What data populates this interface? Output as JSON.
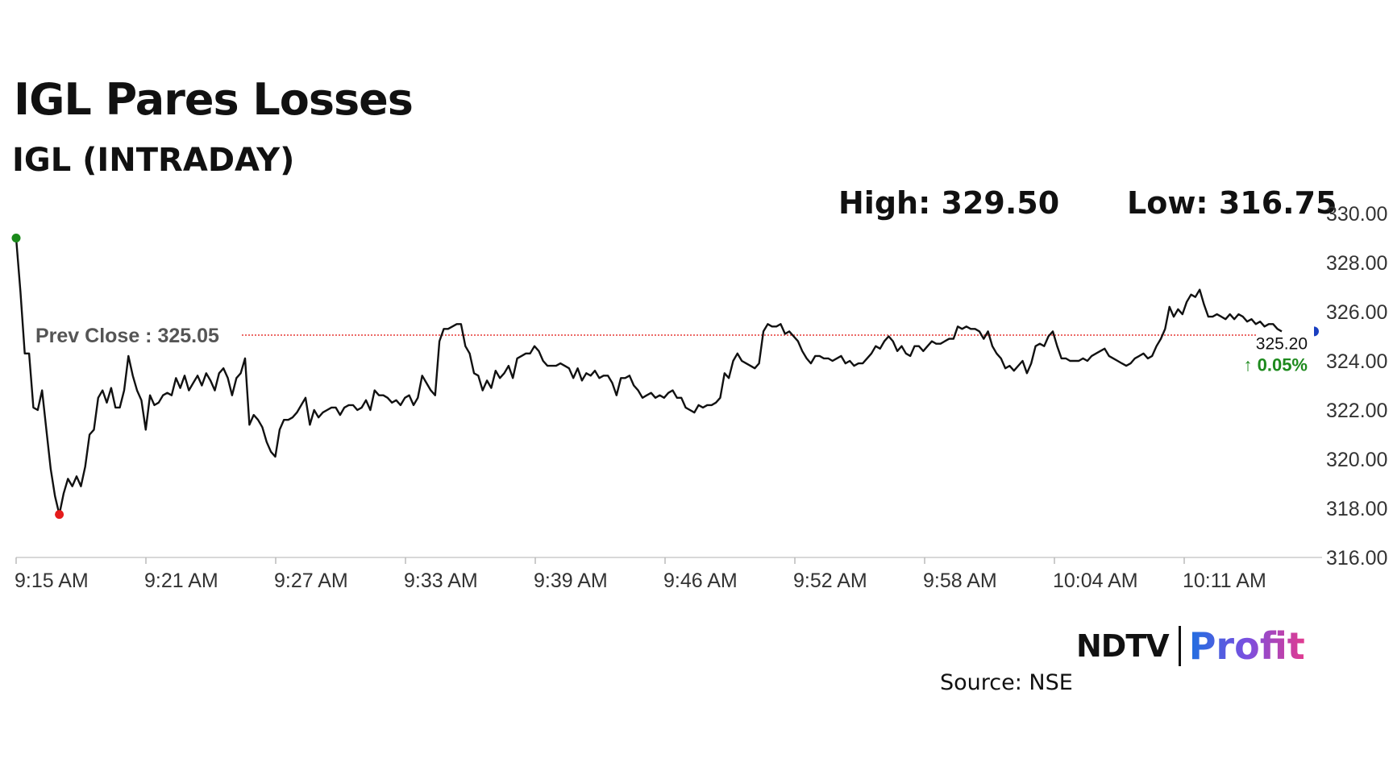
{
  "header": {
    "title": "IGL Pares Losses",
    "subtitle": "IGL (INTRADAY)",
    "high_text": "High: 329.50",
    "low_text": "Low: 316.75"
  },
  "footer": {
    "source": "Source: NSE",
    "logo_ndtv": "NDTV",
    "logo_profit": "Profit"
  },
  "chart_data": {
    "type": "line",
    "title": "IGL (INTRADAY)",
    "y_axis": {
      "min": 316,
      "max": 330,
      "ticks": [
        "316.00",
        "318.00",
        "320.00",
        "322.00",
        "324.00",
        "326.00",
        "328.00",
        "330.00"
      ],
      "side": "right"
    },
    "x_axis": {
      "ticks": [
        "9:15 AM",
        "9:21 AM",
        "9:27 AM",
        "9:33 AM",
        "9:39 AM",
        "9:46 AM",
        "9:52 AM",
        "9:58 AM",
        "10:04 AM",
        "10:11 AM"
      ]
    },
    "prev_close": {
      "label": "Prev Close : 325.05",
      "value": 325.05,
      "color": "#e53935"
    },
    "last": {
      "value_label": "325.20",
      "change_label": "↑ 0.05%",
      "change_color": "#1e8a1e"
    },
    "markers": {
      "start": {
        "index": 0,
        "value": 329.0,
        "color": "#1a8a1a"
      },
      "low": {
        "index": 10,
        "value": 317.75,
        "color": "#e51c1c"
      },
      "end_color": "#1a3fc0"
    },
    "line_color": "#111111",
    "grid": false,
    "values": [
      329.0,
      326.8,
      324.3,
      324.3,
      322.1,
      322.0,
      322.8,
      321.2,
      319.6,
      318.5,
      317.75,
      318.6,
      319.2,
      318.9,
      319.3,
      318.9,
      319.7,
      321.0,
      321.2,
      322.5,
      322.8,
      322.3,
      322.9,
      322.1,
      322.1,
      322.8,
      324.2,
      323.4,
      322.8,
      322.4,
      321.2,
      322.6,
      322.2,
      322.3,
      322.6,
      322.7,
      322.6,
      323.3,
      322.9,
      323.4,
      322.8,
      323.1,
      323.4,
      323.0,
      323.5,
      323.2,
      322.8,
      323.5,
      323.7,
      323.3,
      322.6,
      323.3,
      323.5,
      324.1,
      321.4,
      321.8,
      321.6,
      321.3,
      320.7,
      320.3,
      320.1,
      321.2,
      321.6,
      321.6,
      321.7,
      321.9,
      322.2,
      322.5,
      321.4,
      322.0,
      321.7,
      321.9,
      322.0,
      322.1,
      322.1,
      321.8,
      322.1,
      322.2,
      322.2,
      322.0,
      322.1,
      322.4,
      322.0,
      322.8,
      322.6,
      322.6,
      322.5,
      322.3,
      322.4,
      322.2,
      322.5,
      322.6,
      322.2,
      322.5,
      323.4,
      323.1,
      322.8,
      322.6,
      324.8,
      325.3,
      325.3,
      325.4,
      325.5,
      325.5,
      324.6,
      324.3,
      323.5,
      323.4,
      322.8,
      323.2,
      322.9,
      323.6,
      323.3,
      323.5,
      323.8,
      323.3,
      324.1,
      324.2,
      324.3,
      324.3,
      324.6,
      324.4,
      324.0,
      323.8,
      323.8,
      323.8,
      323.9,
      323.8,
      323.7,
      323.3,
      323.7,
      323.2,
      323.5,
      323.4,
      323.6,
      323.3,
      323.4,
      323.4,
      323.1,
      322.6,
      323.3,
      323.3,
      323.4,
      323.0,
      322.8,
      322.5,
      322.6,
      322.7,
      322.5,
      322.6,
      322.5,
      322.7,
      322.8,
      322.5,
      322.5,
      322.1,
      322.0,
      321.9,
      322.2,
      322.1,
      322.2,
      322.2,
      322.3,
      322.5,
      323.5,
      323.3,
      324.0,
      324.3,
      324.0,
      323.9,
      323.8,
      323.7,
      323.9,
      325.2,
      325.5,
      325.4,
      325.4,
      325.5,
      325.1,
      325.2,
      325.0,
      324.8,
      324.4,
      324.1,
      323.9,
      324.2,
      324.2,
      324.1,
      324.1,
      324.0,
      324.1,
      324.2,
      323.9,
      324.0,
      323.8,
      323.9,
      323.9,
      324.1,
      324.3,
      324.6,
      324.5,
      324.8,
      325.0,
      324.8,
      324.4,
      324.6,
      324.3,
      324.2,
      324.6,
      324.6,
      324.4,
      324.6,
      324.8,
      324.7,
      324.7,
      324.8,
      324.9,
      324.9,
      325.4,
      325.3,
      325.4,
      325.3,
      325.3,
      325.2,
      324.9,
      325.2,
      324.6,
      324.3,
      324.1,
      323.7,
      323.8,
      323.6,
      323.8,
      324.0,
      323.5,
      323.9,
      324.6,
      324.7,
      324.6,
      325.0,
      325.2,
      324.6,
      324.1,
      324.1,
      324.0,
      324.0,
      324.0,
      324.1,
      324.0,
      324.2,
      324.3,
      324.4,
      324.5,
      324.2,
      324.1,
      324.0,
      323.9,
      323.8,
      323.9,
      324.1,
      324.2,
      324.3,
      324.1,
      324.2,
      324.6,
      324.9,
      325.3,
      326.2,
      325.8,
      326.1,
      325.9,
      326.4,
      326.7,
      326.6,
      326.9,
      326.3,
      325.8,
      325.8,
      325.9,
      325.8,
      325.7,
      325.9,
      325.7,
      325.9,
      325.8,
      325.6,
      325.7,
      325.5,
      325.6,
      325.4,
      325.5,
      325.5,
      325.3,
      325.2
    ]
  }
}
